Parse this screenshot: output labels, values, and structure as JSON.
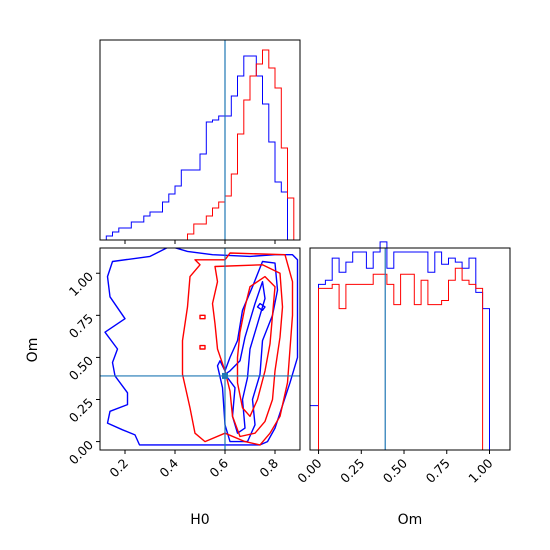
{
  "chart_data": {
    "type": "corner",
    "parameters": [
      "H0",
      "Om"
    ],
    "truth": {
      "H0": 0.6,
      "Om": 0.39
    },
    "truth_color": "#1f77b4",
    "series": [
      {
        "color": "#0000ff"
      },
      {
        "color": "#ff0000"
      }
    ],
    "panels": [
      {
        "id": "hist-h0",
        "type": "step-histogram",
        "xlim": [
          0.1,
          0.9
        ],
        "ylim": [
          0,
          1
        ],
        "xticks": [
          0.2,
          0.4,
          0.6,
          0.8
        ],
        "bin_edges": [
          0.1,
          0.125,
          0.15,
          0.175,
          0.2,
          0.225,
          0.25,
          0.275,
          0.3,
          0.325,
          0.35,
          0.375,
          0.4,
          0.425,
          0.45,
          0.475,
          0.5,
          0.525,
          0.55,
          0.575,
          0.6,
          0.625,
          0.65,
          0.675,
          0.7,
          0.725,
          0.75,
          0.775,
          0.8,
          0.825,
          0.85,
          0.875,
          0.9
        ],
        "series_values": [
          [
            0.0,
            0.02,
            0.04,
            0.06,
            0.06,
            0.09,
            0.09,
            0.12,
            0.14,
            0.14,
            0.19,
            0.23,
            0.27,
            0.35,
            0.35,
            0.35,
            0.43,
            0.59,
            0.6,
            0.62,
            0.62,
            0.72,
            0.82,
            0.92,
            0.92,
            0.82,
            0.68,
            0.49,
            0.29,
            0.24,
            0.0,
            0.0
          ],
          [
            0.0,
            0.0,
            0.0,
            0.0,
            0.0,
            0.0,
            0.0,
            0.0,
            0.0,
            0.0,
            0.0,
            0.0,
            0.0,
            0.0,
            0.03,
            0.08,
            0.08,
            0.12,
            0.16,
            0.19,
            0.22,
            0.33,
            0.53,
            0.7,
            0.82,
            0.88,
            0.95,
            0.86,
            0.76,
            0.46,
            0.21,
            0.0
          ]
        ]
      },
      {
        "id": "contour-h0-om",
        "type": "contour",
        "xlim": [
          0.1,
          0.9
        ],
        "ylim": [
          -0.05,
          1.15
        ],
        "xticks": [
          0.2,
          0.4,
          0.6,
          0.8
        ],
        "yticks": [
          0.0,
          0.25,
          0.5,
          0.75,
          1.0
        ],
        "x_tick_labels": [
          "0.2",
          "0.4",
          "0.6",
          "0.8"
        ],
        "y_tick_labels": [
          "0.00",
          "0.25",
          "0.50",
          "0.75",
          "1.00"
        ],
        "xlabel": "H0",
        "ylabel": "Om",
        "series_contours": [
          [
            [
              [
                0.258,
                -0.02
              ],
              [
                0.24,
                0.04
              ],
              [
                0.19,
                0.07
              ],
              [
                0.13,
                0.11
              ],
              [
                0.14,
                0.18
              ],
              [
                0.21,
                0.22
              ],
              [
                0.21,
                0.29
              ],
              [
                0.16,
                0.39
              ],
              [
                0.15,
                0.47
              ],
              [
                0.17,
                0.55
              ],
              [
                0.12,
                0.65
              ],
              [
                0.2,
                0.73
              ],
              [
                0.14,
                0.86
              ],
              [
                0.13,
                0.98
              ],
              [
                0.15,
                1.07
              ],
              [
                0.3,
                1.1
              ],
              [
                0.38,
                1.16
              ],
              [
                0.45,
                1.13
              ],
              [
                0.55,
                1.11
              ],
              [
                0.7,
                1.1
              ],
              [
                0.8,
                1.11
              ],
              [
                0.87,
                1.11
              ],
              [
                0.89,
                1.08
              ],
              [
                0.89,
                0.7
              ],
              [
                0.89,
                0.5
              ],
              [
                0.86,
                0.35
              ],
              [
                0.8,
                0.08
              ],
              [
                0.77,
                0.0
              ],
              [
                0.74,
                -0.02
              ]
            ],
            [
              [
                0.57,
                0.45
              ],
              [
                0.59,
                0.32
              ],
              [
                0.6,
                0.1
              ],
              [
                0.62,
                0.0
              ],
              [
                0.69,
                0.0
              ],
              [
                0.72,
                0.1
              ],
              [
                0.71,
                0.25
              ],
              [
                0.74,
                0.4
              ],
              [
                0.75,
                0.6
              ],
              [
                0.79,
                0.75
              ],
              [
                0.81,
                0.9
              ],
              [
                0.8,
                1.06
              ],
              [
                0.75,
                1.07
              ],
              [
                0.71,
                0.92
              ],
              [
                0.67,
                0.78
              ],
              [
                0.65,
                0.6
              ],
              [
                0.62,
                0.5
              ],
              [
                0.6,
                0.42
              ],
              [
                0.58,
                0.48
              ]
            ],
            [
              [
                0.6,
                0.4
              ],
              [
                0.64,
                0.32
              ],
              [
                0.63,
                0.15
              ],
              [
                0.65,
                0.05
              ],
              [
                0.68,
                0.08
              ],
              [
                0.67,
                0.25
              ],
              [
                0.69,
                0.38
              ],
              [
                0.7,
                0.55
              ],
              [
                0.73,
                0.7
              ],
              [
                0.76,
                0.85
              ],
              [
                0.75,
                0.95
              ],
              [
                0.72,
                0.82
              ],
              [
                0.68,
                0.62
              ],
              [
                0.66,
                0.48
              ],
              [
                0.62,
                0.42
              ]
            ],
            [
              [
                0.73,
                0.8
              ],
              [
                0.75,
                0.78
              ],
              [
                0.76,
                0.8
              ],
              [
                0.74,
                0.82
              ]
            ]
          ],
          [
            [
              [
                0.52,
                0.0
              ],
              [
                0.48,
                0.05
              ],
              [
                0.46,
                0.2
              ],
              [
                0.43,
                0.4
              ],
              [
                0.43,
                0.6
              ],
              [
                0.45,
                0.8
              ],
              [
                0.46,
                0.98
              ],
              [
                0.5,
                1.05
              ],
              [
                0.48,
                1.08
              ],
              [
                0.6,
                1.08
              ],
              [
                0.62,
                1.12
              ],
              [
                0.84,
                1.11
              ],
              [
                0.87,
                0.95
              ],
              [
                0.87,
                0.75
              ],
              [
                0.86,
                0.55
              ],
              [
                0.85,
                0.35
              ],
              [
                0.82,
                0.15
              ],
              [
                0.78,
                0.05
              ],
              [
                0.74,
                -0.02
              ],
              [
                0.68,
                0.0
              ],
              [
                0.6,
                0.05
              ]
            ],
            [
              [
                0.6,
                0.42
              ],
              [
                0.57,
                0.55
              ],
              [
                0.56,
                0.7
              ],
              [
                0.55,
                0.82
              ],
              [
                0.57,
                0.95
              ],
              [
                0.56,
                1.04
              ],
              [
                0.75,
                1.05
              ],
              [
                0.82,
                1.0
              ],
              [
                0.83,
                0.8
              ],
              [
                0.82,
                0.62
              ],
              [
                0.8,
                0.42
              ],
              [
                0.79,
                0.25
              ],
              [
                0.76,
                0.12
              ],
              [
                0.72,
                0.05
              ],
              [
                0.66,
                0.03
              ],
              [
                0.63,
                0.15
              ],
              [
                0.62,
                0.3
              ]
            ],
            [
              [
                0.67,
                0.2
              ],
              [
                0.65,
                0.35
              ],
              [
                0.65,
                0.5
              ],
              [
                0.66,
                0.65
              ],
              [
                0.68,
                0.8
              ],
              [
                0.7,
                0.92
              ],
              [
                0.76,
                0.98
              ],
              [
                0.8,
                0.92
              ],
              [
                0.79,
                0.75
              ],
              [
                0.78,
                0.58
              ],
              [
                0.76,
                0.42
              ],
              [
                0.73,
                0.25
              ],
              [
                0.7,
                0.15
              ]
            ],
            [
              [
                0.5,
                0.73
              ],
              [
                0.52,
                0.73
              ],
              [
                0.52,
                0.75
              ],
              [
                0.5,
                0.75
              ]
            ],
            [
              [
                0.5,
                0.55
              ],
              [
                0.52,
                0.55
              ],
              [
                0.52,
                0.57
              ],
              [
                0.5,
                0.57
              ]
            ]
          ]
        ]
      },
      {
        "id": "hist-om",
        "type": "step-histogram",
        "xlim": [
          -0.05,
          1.12
        ],
        "ylim": [
          0,
          1
        ],
        "xticks": [
          0.0,
          0.25,
          0.5,
          0.75,
          1.0
        ],
        "x_tick_labels": [
          "0.00",
          "0.25",
          "0.50",
          "0.75",
          "1.00"
        ],
        "xlabel": "Om",
        "bin_edges": [
          -0.05,
          0.0,
          0.04,
          0.08,
          0.12,
          0.16,
          0.2,
          0.24,
          0.28,
          0.32,
          0.36,
          0.4,
          0.44,
          0.48,
          0.52,
          0.56,
          0.6,
          0.64,
          0.68,
          0.72,
          0.76,
          0.8,
          0.84,
          0.88,
          0.92,
          0.96,
          1.0,
          1.05,
          1.12
        ],
        "series_values": [
          [
            0.22,
            0.82,
            0.84,
            0.95,
            0.88,
            0.93,
            0.98,
            0.98,
            0.9,
            0.98,
            1.03,
            0.9,
            0.98,
            0.98,
            0.98,
            0.98,
            0.98,
            0.88,
            0.98,
            0.92,
            0.95,
            0.93,
            0.9,
            0.95,
            0.78,
            0.7,
            0.0,
            0.0
          ],
          [
            0.0,
            0.8,
            0.8,
            0.82,
            0.7,
            0.82,
            0.82,
            0.82,
            0.82,
            0.87,
            0.87,
            0.82,
            0.72,
            0.87,
            0.87,
            0.72,
            0.84,
            0.72,
            0.72,
            0.74,
            0.84,
            0.9,
            0.84,
            0.82,
            0.8,
            0.0,
            0.0,
            0.0
          ]
        ]
      }
    ]
  }
}
